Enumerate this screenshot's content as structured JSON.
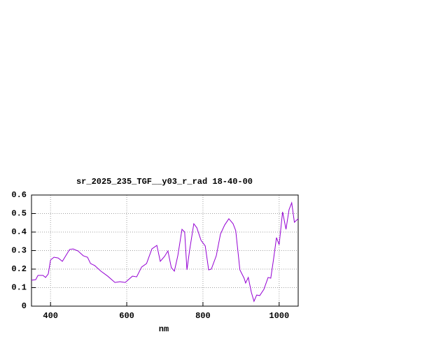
{
  "chart_data": {
    "type": "line",
    "title": "sr_2025_235_TGF__y03_r_rad 18-40-00",
    "xlabel": "nm",
    "x": [
      350,
      361,
      367,
      380,
      387,
      394,
      400,
      409,
      420,
      431,
      440,
      450,
      459,
      472,
      486,
      497,
      505,
      516,
      532,
      550,
      569,
      582,
      596,
      615,
      626,
      639,
      652,
      666,
      679,
      688,
      699,
      708,
      717,
      725,
      734,
      745,
      752,
      758,
      765,
      776,
      784,
      795,
      806,
      815,
      822,
      835,
      846,
      857,
      868,
      879,
      886,
      897,
      908,
      912,
      919,
      927,
      934,
      941,
      949,
      960,
      971,
      978,
      985,
      993,
      1000,
      1009,
      1018,
      1026,
      1033,
      1040,
      1050
    ],
    "values": [
      0.14,
      0.143,
      0.166,
      0.166,
      0.155,
      0.174,
      0.249,
      0.264,
      0.26,
      0.242,
      0.272,
      0.306,
      0.309,
      0.298,
      0.272,
      0.264,
      0.23,
      0.219,
      0.189,
      0.162,
      0.128,
      0.132,
      0.128,
      0.162,
      0.158,
      0.211,
      0.23,
      0.309,
      0.328,
      0.242,
      0.268,
      0.298,
      0.208,
      0.189,
      0.272,
      0.415,
      0.4,
      0.196,
      0.302,
      0.445,
      0.423,
      0.355,
      0.325,
      0.196,
      0.2,
      0.272,
      0.389,
      0.438,
      0.472,
      0.445,
      0.408,
      0.196,
      0.151,
      0.125,
      0.155,
      0.075,
      0.026,
      0.06,
      0.057,
      0.091,
      0.155,
      0.151,
      0.249,
      0.37,
      0.332,
      0.509,
      0.415,
      0.521,
      0.558,
      0.453,
      0.472
    ],
    "color": "#9400d3",
    "xlim": [
      350,
      1050
    ],
    "xticks": [
      400,
      600,
      800,
      1000
    ],
    "ylim": [
      0,
      0.6
    ],
    "yticks": [
      0,
      0.1,
      0.2,
      0.3,
      0.4,
      0.5,
      0.6
    ],
    "grid": true
  }
}
